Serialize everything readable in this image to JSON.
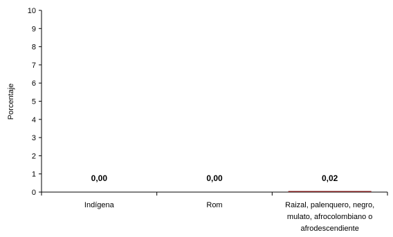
{
  "chart_data": {
    "type": "bar",
    "title": "",
    "xlabel": "",
    "ylabel": "Porcentaje",
    "ylim": [
      0,
      10
    ],
    "yticks": [
      0,
      1,
      2,
      3,
      4,
      5,
      6,
      7,
      8,
      9,
      10
    ],
    "grid": false,
    "legend": "none",
    "categories": [
      [
        "Indígena"
      ],
      [
        "Rom"
      ],
      [
        "Raizal, palenquero, negro,",
        "mulato, afrocolombiano o",
        "afrodescendiente"
      ]
    ],
    "values": [
      0.0,
      0.0,
      0.02
    ],
    "data_labels": [
      "0,00",
      "0,00",
      "0,02"
    ],
    "bar_color": "#7b1a1a",
    "axis_color": "#000000"
  }
}
